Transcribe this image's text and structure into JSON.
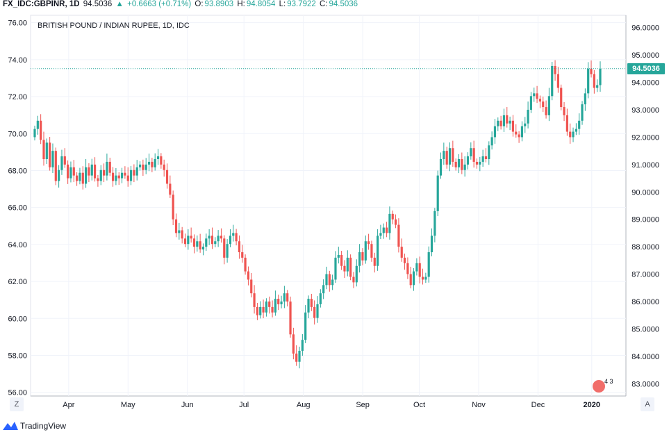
{
  "header": {
    "symbol": "FX_IDC:GBPINR, 1D",
    "last": "94.5036",
    "change": "+0.6663 (+0.71%)",
    "open_label": "O:",
    "open": "93.8903",
    "high_label": "H:",
    "high": "94.8054",
    "low_label": "L:",
    "low": "93.7922",
    "close_label": "C:",
    "close": "94.5036"
  },
  "brand": "TradingView",
  "buttons": {
    "zoom": "Z",
    "auto": "A"
  },
  "badge": "4 3",
  "colors": {
    "up": "#26a69a",
    "down": "#ef5350",
    "grid": "#f0f3fa"
  },
  "chart_data": {
    "type": "candlestick",
    "title": "BRITISH POUND / INDIAN RUPEE, 1D, IDC",
    "left_axis": {
      "ticks": [
        "56.00",
        "58.00",
        "60.00",
        "62.00",
        "64.00",
        "66.00",
        "68.00",
        "70.00",
        "72.00",
        "74.00",
        "76.00"
      ],
      "range": [
        55.8,
        76.4
      ]
    },
    "right_axis": {
      "ticks": [
        "83.0000",
        "84.0000",
        "85.0000",
        "86.0000",
        "87.0000",
        "88.0000",
        "89.0000",
        "90.0000",
        "91.0000",
        "92.0000",
        "93.0000",
        "94.0000",
        "95.0000",
        "96.0000"
      ],
      "range": [
        82.55,
        96.45
      ]
    },
    "x_labels": [
      "Apr",
      "May",
      "Jun",
      "Jul",
      "Aug",
      "Sep",
      "Oct",
      "Nov",
      "Dec",
      "2020"
    ],
    "last_price": 94.5036,
    "closes": [
      92.3,
      92.6,
      91.9,
      91.2,
      91.8,
      90.9,
      91.5,
      90.4,
      90.8,
      91.3,
      91.0,
      90.5,
      90.9,
      90.6,
      90.4,
      90.7,
      90.3,
      90.9,
      90.6,
      91.0,
      90.5,
      90.4,
      90.8,
      90.6,
      91.1,
      90.7,
      90.4,
      90.6,
      90.5,
      90.7,
      90.6,
      90.4,
      90.8,
      90.6,
      90.9,
      91.0,
      90.8,
      91.0,
      91.1,
      90.9,
      91.2,
      91.3,
      91.0,
      90.8,
      90.3,
      89.9,
      89.0,
      88.5,
      88.6,
      88.3,
      88.1,
      88.4,
      88.3,
      88.0,
      88.2,
      87.9,
      88.0,
      88.3,
      88.4,
      88.1,
      88.2,
      88.4,
      88.3,
      87.6,
      88.1,
      88.4,
      88.5,
      88.2,
      87.8,
      87.6,
      87.1,
      86.8,
      86.3,
      85.8,
      85.5,
      85.8,
      85.6,
      86.0,
      85.8,
      85.6,
      86.1,
      85.9,
      86.0,
      86.3,
      86.0,
      84.8,
      84.1,
      83.8,
      84.2,
      84.6,
      85.6,
      86.1,
      85.8,
      85.4,
      85.9,
      86.3,
      86.6,
      87.0,
      86.6,
      86.8,
      87.6,
      87.7,
      87.3,
      87.1,
      87.6,
      86.9,
      86.7,
      87.3,
      87.8,
      87.5,
      88.2,
      88.1,
      87.6,
      87.3,
      88.4,
      88.5,
      88.7,
      88.5,
      89.2,
      89.0,
      88.8,
      88.0,
      87.6,
      87.4,
      87.0,
      86.6,
      87.1,
      87.4,
      86.9,
      86.8,
      86.9,
      87.8,
      88.4,
      89.3,
      90.6,
      91.2,
      91.5,
      91.0,
      91.6,
      91.1,
      90.9,
      91.2,
      90.8,
      91.0,
      91.3,
      91.6,
      91.1,
      91.0,
      91.1,
      91.3,
      91.2,
      91.7,
      92.0,
      92.4,
      92.6,
      92.4,
      92.8,
      92.5,
      92.6,
      92.2,
      92.1,
      92.0,
      92.4,
      92.5,
      93.0,
      93.5,
      93.6,
      93.4,
      93.3,
      93.1,
      92.8,
      93.5,
      94.6,
      94.3,
      93.8,
      93.1,
      92.8,
      92.2,
      92.0,
      92.2,
      92.3,
      92.6,
      93.2,
      93.6,
      94.5,
      94.3,
      93.8,
      93.9,
      94.5
    ]
  }
}
